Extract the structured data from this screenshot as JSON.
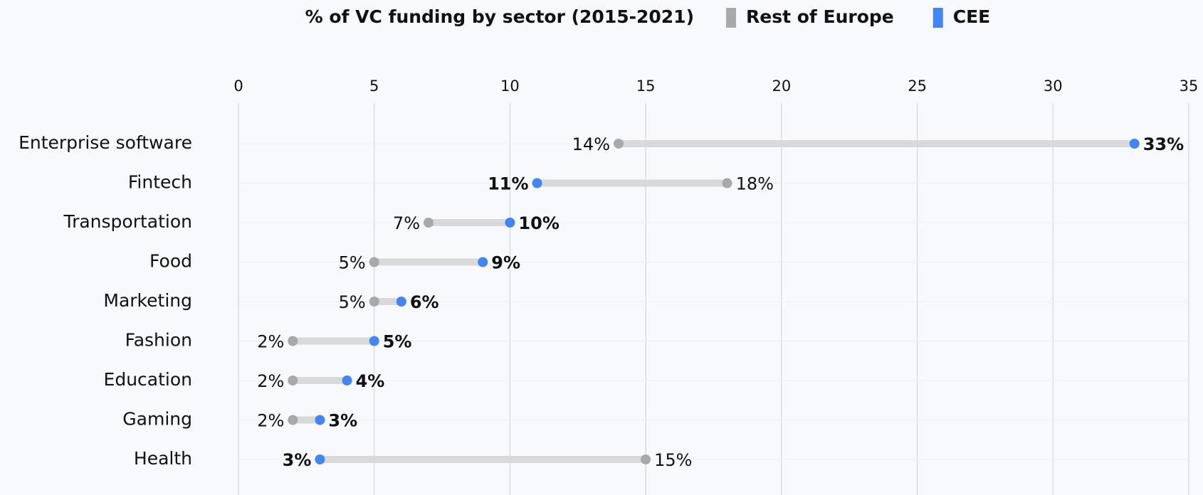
{
  "chart_data": {
    "type": "dumbbell",
    "title": "% of VC funding by sector (2015-2021)",
    "categories": [
      "Enterprise software",
      "Fintech",
      "Transportation",
      "Food",
      "Marketing",
      "Fashion",
      "Education",
      "Gaming",
      "Health"
    ],
    "series": [
      {
        "name": "Rest of Europe",
        "color": "#a9a9a9",
        "values": [
          14,
          18,
          7,
          5,
          5,
          2,
          2,
          2,
          15
        ],
        "value_labels": [
          "14%",
          "18%",
          "7%",
          "5%",
          "5%",
          "2%",
          "2%",
          "2%",
          "15%"
        ]
      },
      {
        "name": "CEE",
        "color": "#4285f4",
        "values": [
          33,
          11,
          10,
          9,
          6,
          5,
          4,
          3,
          3
        ],
        "value_labels": [
          "33%",
          "11%",
          "10%",
          "9%",
          "6%",
          "5%",
          "4%",
          "3%",
          "3%"
        ]
      }
    ],
    "xlim": [
      0,
      35
    ],
    "xticks": [
      0,
      5,
      10,
      15,
      20,
      25,
      30,
      35
    ],
    "grid": true
  }
}
